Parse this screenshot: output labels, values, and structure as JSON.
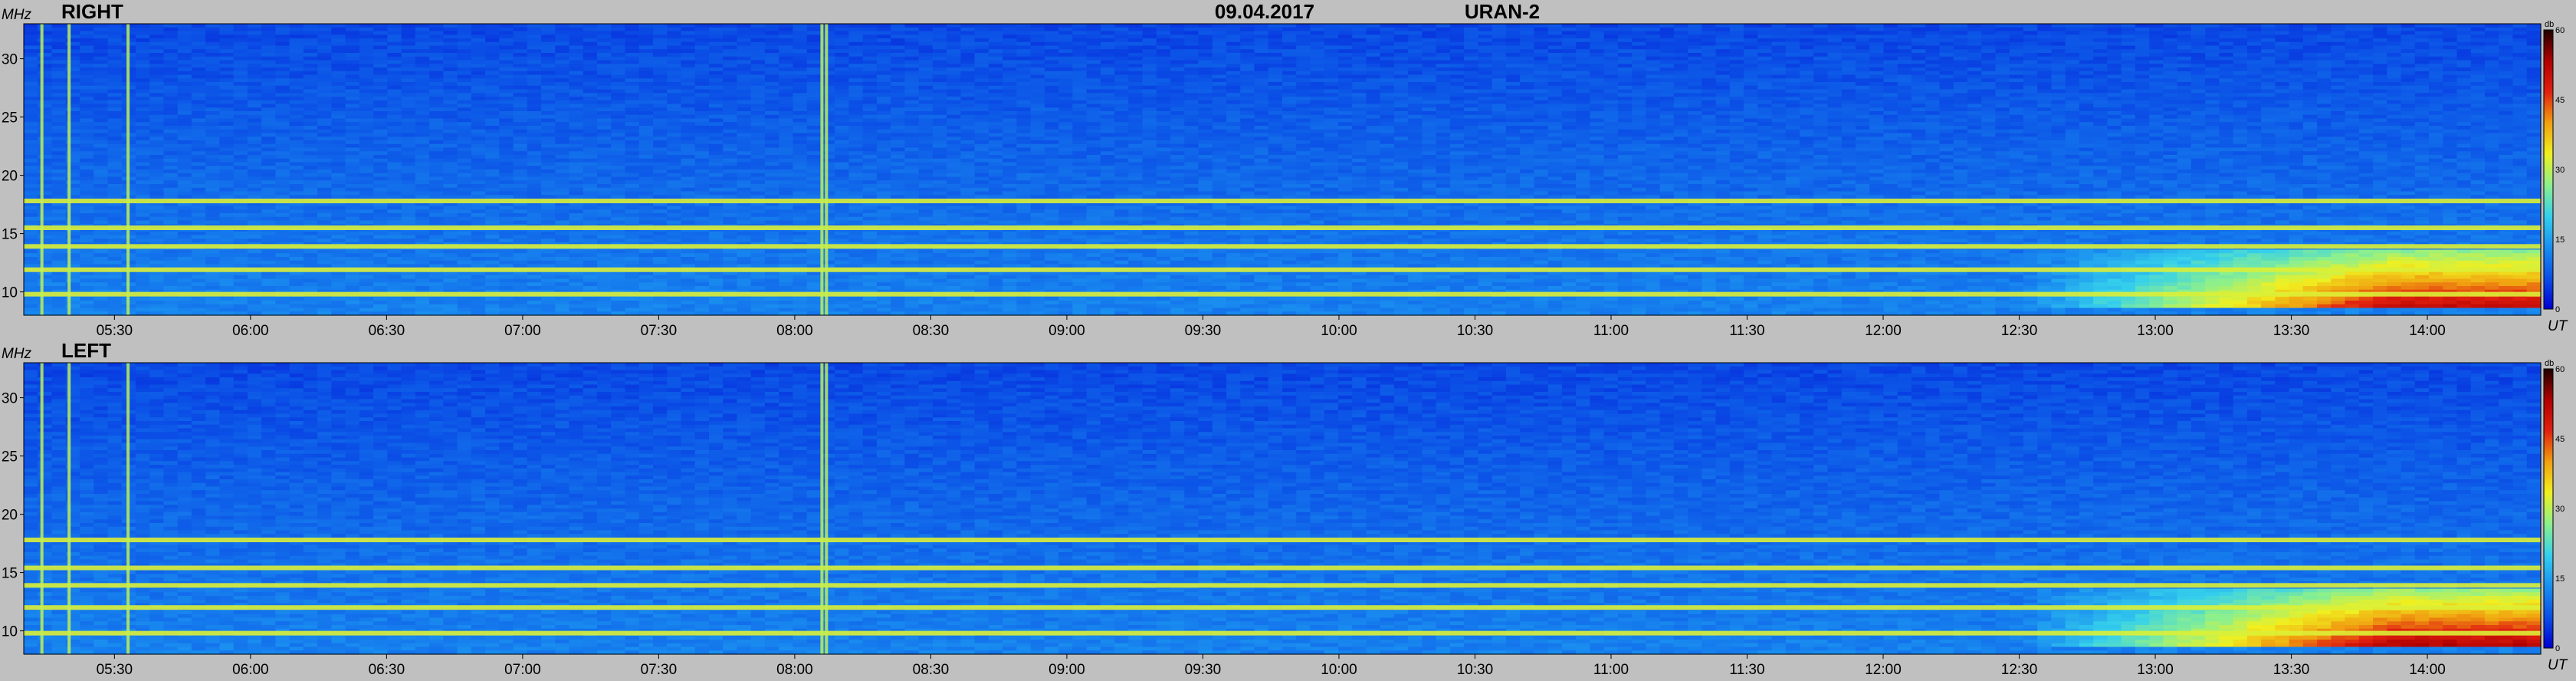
{
  "header": {
    "date": "09.04.2017",
    "instrument": "URAN-2"
  },
  "colors": {
    "background": "#c0c0c0",
    "colormap": [
      "#0000d0",
      "#0b4fe6",
      "#1a8ff0",
      "#35d0ec",
      "#8cf08c",
      "#f0f020",
      "#f0a010",
      "#e02010",
      "#b00000",
      "#200000"
    ]
  },
  "chart_data": [
    {
      "type": "heatmap",
      "title": "RIGHT",
      "ylabel": "MHz",
      "xlabel": "UT",
      "ylim": [
        8,
        33
      ],
      "xlim": [
        "05:10",
        "14:25"
      ],
      "yticks": [
        "30",
        "25",
        "20",
        "15",
        "10"
      ],
      "xticks": [
        "05:30",
        "06:00",
        "06:30",
        "07:00",
        "07:30",
        "08:00",
        "08:30",
        "09:00",
        "09:30",
        "10:00",
        "10:30",
        "11:00",
        "11:30",
        "12:00",
        "12:30",
        "13:00",
        "13:30",
        "14:00"
      ],
      "colorbar": {
        "label": "db",
        "range": [
          0,
          60
        ],
        "ticks": [
          "60",
          "45",
          "30",
          "15",
          "0"
        ]
      },
      "features": {
        "bands_mhz": [
          9.8,
          11.9,
          13.9,
          15.5,
          17.8
        ],
        "vertical_bursts_ut": [
          "05:14",
          "05:20",
          "05:33",
          "08:06",
          "08:07"
        ],
        "hot_region": {
          "from_ut": "12:30",
          "to_ut": "14:25",
          "freq_mhz": [
            8.5,
            13.5
          ],
          "level_db": 40
        }
      }
    },
    {
      "type": "heatmap",
      "title": "LEFT",
      "ylabel": "MHz",
      "xlabel": "UT",
      "ylim": [
        8,
        33
      ],
      "xlim": [
        "05:10",
        "14:25"
      ],
      "yticks": [
        "30",
        "25",
        "20",
        "15",
        "10"
      ],
      "xticks": [
        "05:30",
        "06:00",
        "06:30",
        "07:00",
        "07:30",
        "08:00",
        "08:30",
        "09:00",
        "09:30",
        "10:00",
        "10:30",
        "11:00",
        "11:30",
        "12:00",
        "12:30",
        "13:00",
        "13:30",
        "14:00"
      ],
      "colorbar": {
        "label": "db",
        "range": [
          0,
          60
        ],
        "ticks": [
          "60",
          "45",
          "30",
          "15",
          "0"
        ]
      },
      "features": {
        "bands_mhz": [
          9.8,
          12.0,
          13.9,
          15.4,
          17.8
        ],
        "vertical_bursts_ut": [
          "05:14",
          "05:20",
          "05:33",
          "08:06",
          "08:07"
        ],
        "hot_region": {
          "from_ut": "12:30",
          "to_ut": "14:25",
          "freq_mhz": [
            8.5,
            13.5
          ],
          "level_db": 42
        }
      }
    }
  ]
}
